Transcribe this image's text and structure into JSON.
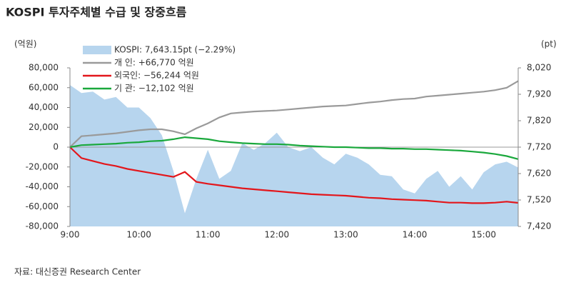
{
  "chart_data": {
    "type": "line",
    "title": "KOSPI 투자주체별 수급 및 장중흐름",
    "y_label": "(억원)",
    "y2_label": "(pt)",
    "source": "자료: 대신증권 Research Center",
    "categories": [
      "9:00",
      null,
      null,
      null,
      null,
      null,
      "10:00",
      null,
      null,
      null,
      null,
      null,
      "11:00",
      null,
      null,
      null,
      null,
      null,
      "12:00",
      null,
      null,
      null,
      null,
      null,
      "13:00",
      null,
      null,
      null,
      null,
      null,
      "14:00",
      null,
      null,
      null,
      null,
      null,
      "15:00",
      null,
      null,
      null
    ],
    "ylim": [
      -80000,
      80000
    ],
    "yticks": [
      {
        "value": -80000,
        "label": "-80,000"
      },
      {
        "value": -60000,
        "label": "-60,000"
      },
      {
        "value": -40000,
        "label": "-40,000"
      },
      {
        "value": -20000,
        "label": "-20,000"
      },
      0,
      {
        "value": 20000,
        "label": "20,000"
      },
      {
        "value": 40000,
        "label": "40,000"
      },
      {
        "value": 60000,
        "label": "60,000"
      },
      {
        "value": 80000,
        "label": "80,000"
      }
    ],
    "y2lim": [
      7420,
      8020
    ],
    "y2ticks": [
      {
        "value": 7420,
        "label": "7,420"
      },
      {
        "value": 7520,
        "label": "7,520"
      },
      {
        "value": 7620,
        "label": "7,620"
      },
      {
        "value": 7720,
        "label": "7,720"
      },
      {
        "value": 7820,
        "label": "7,820"
      },
      {
        "value": 7920,
        "label": "7,920"
      },
      {
        "value": 8020,
        "label": "8,020"
      }
    ],
    "grid": false,
    "legend": "upper left",
    "series": [
      {
        "name": "KOSPI: 7,643.15pt (−2.29%)",
        "type": "area",
        "axis": "y2",
        "color": "#b7d5ee",
        "values": [
          7955,
          7925,
          7930,
          7900,
          7910,
          7870,
          7870,
          7830,
          7765,
          7630,
          7470,
          7600,
          7710,
          7600,
          7630,
          7735,
          7710,
          7735,
          7775,
          7720,
          7705,
          7720,
          7680,
          7655,
          7695,
          7680,
          7655,
          7615,
          7610,
          7560,
          7545,
          7600,
          7630,
          7570,
          7610,
          7560,
          7625,
          7655,
          7665,
          7643
        ]
      },
      {
        "name": "개    인: +66,770 억원",
        "type": "line",
        "color": "#9a9a9a",
        "values": [
          0,
          11000,
          12000,
          13000,
          14000,
          15500,
          17000,
          18000,
          18000,
          16000,
          13000,
          19000,
          24000,
          30000,
          34000,
          35000,
          36000,
          36500,
          37000,
          38000,
          39000,
          40000,
          41000,
          41500,
          42000,
          43500,
          45000,
          46000,
          47500,
          48500,
          49000,
          51000,
          52000,
          53000,
          54000,
          55000,
          56000,
          57500,
          60000,
          66770
        ]
      },
      {
        "name": "외국인: −56,244 억원",
        "type": "line",
        "color": "#e3161b",
        "values": [
          0,
          -11000,
          -14000,
          -17000,
          -19000,
          -22000,
          -24000,
          -26000,
          -28000,
          -30000,
          -25000,
          -35000,
          -37000,
          -38500,
          -40000,
          -41500,
          -42500,
          -43500,
          -44500,
          -45500,
          -46500,
          -47500,
          -48000,
          -48500,
          -49000,
          -50000,
          -51000,
          -51500,
          -52500,
          -53000,
          -53500,
          -54000,
          -55000,
          -56000,
          -56000,
          -56500,
          -56500,
          -56000,
          -55000,
          -56244
        ]
      },
      {
        "name": "기    관: −12,102 억원",
        "type": "line",
        "color": "#1aa83c",
        "values": [
          0,
          2000,
          2500,
          3000,
          3500,
          4500,
          5000,
          6000,
          6500,
          8000,
          10000,
          9000,
          8000,
          6000,
          5000,
          4000,
          3500,
          3000,
          3000,
          2500,
          1500,
          1000,
          500,
          0,
          0,
          -500,
          -1000,
          -1000,
          -1500,
          -1500,
          -2000,
          -2000,
          -2500,
          -3000,
          -3500,
          -4500,
          -5500,
          -7000,
          -9000,
          -12102
        ]
      }
    ]
  }
}
